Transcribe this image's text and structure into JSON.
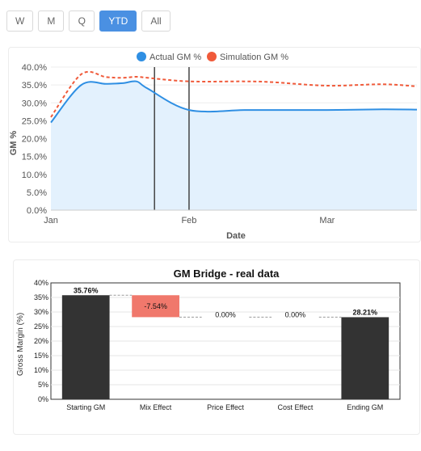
{
  "tabs": [
    {
      "label": "W",
      "active": false
    },
    {
      "label": "M",
      "active": false
    },
    {
      "label": "Q",
      "active": false
    },
    {
      "label": "YTD",
      "active": true
    },
    {
      "label": "All",
      "active": false
    }
  ],
  "colors": {
    "accent": "#4a90e2",
    "actual": "#2f8fe3",
    "simulation": "#f05a3a",
    "area_fill": "#e3f1fd",
    "bar_dark": "#333333",
    "bar_negative": "#f0786c"
  },
  "chart_data": [
    {
      "type": "line",
      "series": [
        {
          "name": "Actual GM %",
          "x": [
            0,
            0.22,
            0.4,
            0.52,
            0.62,
            0.7,
            1.0,
            1.4,
            1.6,
            2.0,
            2.4,
            2.65
          ],
          "values": [
            24.5,
            35.0,
            35.3,
            35.5,
            36.0,
            34.0,
            28.0,
            28.0,
            28.0,
            28.0,
            28.2,
            28.1
          ]
        },
        {
          "name": "Simulation GM %",
          "x": [
            0,
            0.22,
            0.4,
            0.52,
            0.62,
            0.7,
            1.0,
            1.4,
            1.6,
            2.0,
            2.4,
            2.65
          ],
          "values": [
            26.0,
            38.0,
            37.2,
            37.0,
            37.3,
            37.0,
            36.0,
            36.0,
            35.8,
            34.8,
            35.2,
            34.6
          ]
        }
      ],
      "x_ticks": [
        "Jan",
        "Feb",
        "Mar"
      ],
      "xlabel": "Date",
      "ylabel": "GM %",
      "y_ticks": [
        "0.0%",
        "5.0%",
        "10.0%",
        "15.0%",
        "20.0%",
        "25.0%",
        "30.0%",
        "35.0%",
        "40.0%"
      ],
      "ylim": [
        0,
        40
      ],
      "vertical_markers": [
        0.75,
        1.0
      ],
      "legend": "top-center",
      "grid": true
    },
    {
      "type": "bar",
      "title": "GM Bridge - real data",
      "ylabel": "Gross Margin (%)",
      "categories": [
        "Starting GM",
        "Mix Effect",
        "Price Effect",
        "Cost Effect",
        "Ending GM"
      ],
      "values": [
        35.76,
        -7.54,
        0.0,
        0.0,
        28.21
      ],
      "data_labels": [
        "35.76%",
        "-7.54%",
        "0.00%",
        "0.00%",
        "28.21%"
      ],
      "y_ticks": [
        "0%",
        "5%",
        "10%",
        "15%",
        "20%",
        "25%",
        "30%",
        "35%",
        "40%"
      ],
      "ylim": [
        0,
        40
      ],
      "grid": true
    }
  ]
}
